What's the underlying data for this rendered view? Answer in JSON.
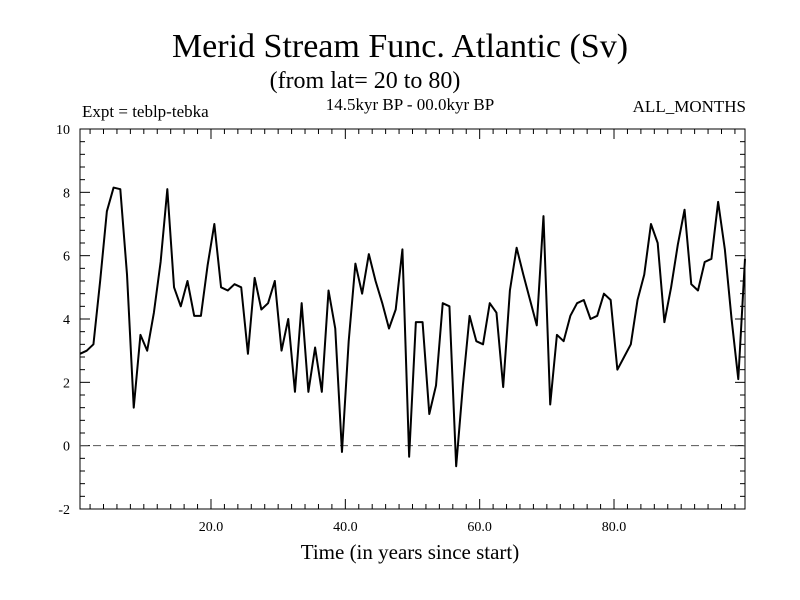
{
  "chart_data": {
    "type": "line",
    "title": "Merid Stream Func. Atlantic (Sv)",
    "subtitle": "(from lat= 20 to 80)",
    "expt_label": "Expt = teblp-tebka",
    "period_label": "14.5kyr BP - 00.0kyr BP",
    "months_label": "ALL_MONTHS",
    "xlabel": "Time (in years since start)",
    "ylabel": "",
    "xlim": [
      0.5,
      99.5
    ],
    "ylim": [
      -2,
      10
    ],
    "xticks": [
      20,
      40,
      60,
      80
    ],
    "xtick_labels": [
      "20.0",
      "40.0",
      "60.0",
      "80.0"
    ],
    "yticks": [
      -2,
      0,
      2,
      4,
      6,
      8,
      10
    ],
    "ytick_labels": [
      "-2",
      "0",
      "2",
      "4",
      "6",
      "8",
      "10"
    ],
    "reference_line": 0,
    "x_start": 0.5,
    "x_step": 1,
    "series": [
      {
        "name": "teblp-tebka",
        "values": [
          2.9,
          3.0,
          3.2,
          5.2,
          7.4,
          8.15,
          8.1,
          5.4,
          1.2,
          3.5,
          3.0,
          4.2,
          5.8,
          8.1,
          5.0,
          4.4,
          5.2,
          4.1,
          4.1,
          5.7,
          7.0,
          5.0,
          4.9,
          5.1,
          5.0,
          2.9,
          5.3,
          4.3,
          4.5,
          5.2,
          3.0,
          4.0,
          1.7,
          4.5,
          1.7,
          3.1,
          1.7,
          4.9,
          3.7,
          -0.2,
          3.3,
          5.75,
          4.8,
          6.05,
          5.2,
          4.5,
          3.7,
          4.3,
          6.2,
          -0.35,
          3.9,
          3.9,
          1.0,
          1.9,
          4.5,
          4.4,
          -0.65,
          1.9,
          4.1,
          3.3,
          3.2,
          4.5,
          4.2,
          1.85,
          4.9,
          6.25,
          5.4,
          4.6,
          3.8,
          7.25,
          1.3,
          3.5,
          3.3,
          4.1,
          4.5,
          4.6,
          4.0,
          4.1,
          4.8,
          4.6,
          2.4,
          2.8,
          3.2,
          4.6,
          5.4,
          7.0,
          6.4,
          3.9,
          5.0,
          6.35,
          7.45,
          5.1,
          4.9,
          5.8,
          5.9,
          7.7,
          6.2,
          4.0,
          2.1,
          5.9
        ]
      }
    ]
  }
}
